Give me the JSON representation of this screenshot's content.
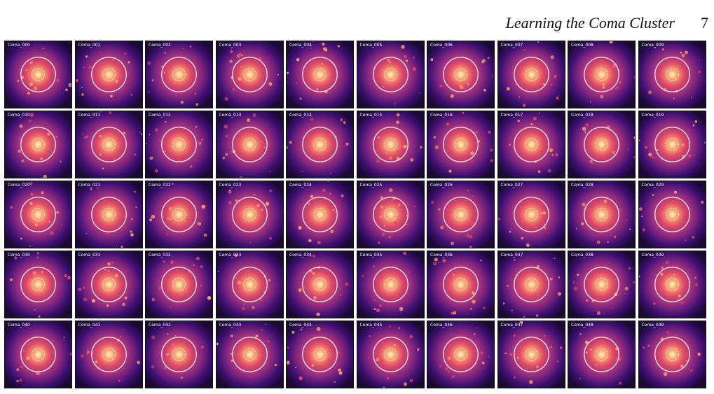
{
  "header": {
    "running_title": "Learning the Coma Cluster",
    "page_number": "7"
  },
  "figure": {
    "colormap": [
      "#1a0933",
      "#3b0f70",
      "#8c2981",
      "#de4968",
      "#fe9f6d",
      "#fcfdbf"
    ],
    "outer_circle_color": "#ffffff",
    "inner_circle_color": "#ffffff",
    "panels": [
      {
        "label": "Coma_000"
      },
      {
        "label": "Coma_001"
      },
      {
        "label": "Coma_002"
      },
      {
        "label": "Coma_003"
      },
      {
        "label": "Coma_004"
      },
      {
        "label": "Coma_005"
      },
      {
        "label": "Coma_006"
      },
      {
        "label": "Coma_007"
      },
      {
        "label": "Coma_008"
      },
      {
        "label": "Coma_009"
      },
      {
        "label": "Coma_010"
      },
      {
        "label": "Coma_011"
      },
      {
        "label": "Coma_012"
      },
      {
        "label": "Coma_013"
      },
      {
        "label": "Coma_014"
      },
      {
        "label": "Coma_015"
      },
      {
        "label": "Coma_016"
      },
      {
        "label": "Coma_017"
      },
      {
        "label": "Coma_018"
      },
      {
        "label": "Coma_019"
      },
      {
        "label": "Coma_020"
      },
      {
        "label": "Coma_021"
      },
      {
        "label": "Coma_022"
      },
      {
        "label": "Coma_023"
      },
      {
        "label": "Coma_024"
      },
      {
        "label": "Coma_025"
      },
      {
        "label": "Coma_026"
      },
      {
        "label": "Coma_027"
      },
      {
        "label": "Coma_028"
      },
      {
        "label": "Coma_029"
      },
      {
        "label": "Coma_030"
      },
      {
        "label": "Coma_031"
      },
      {
        "label": "Coma_032"
      },
      {
        "label": "Coma_033"
      },
      {
        "label": "Coma_034"
      },
      {
        "label": "Coma_035"
      },
      {
        "label": "Coma_036"
      },
      {
        "label": "Coma_037"
      },
      {
        "label": "Coma_038"
      },
      {
        "label": "Coma_039"
      },
      {
        "label": "Coma_040"
      },
      {
        "label": "Coma_041"
      },
      {
        "label": "Coma_042"
      },
      {
        "label": "Coma_043"
      },
      {
        "label": "Coma_044"
      },
      {
        "label": "Coma_045"
      },
      {
        "label": "Coma_046"
      },
      {
        "label": "Coma_047"
      },
      {
        "label": "Coma_048"
      },
      {
        "label": "Coma_049"
      }
    ]
  }
}
